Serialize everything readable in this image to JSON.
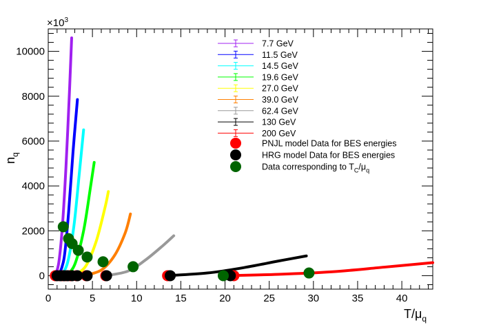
{
  "chart_data": {
    "type": "line",
    "xlabel": "T/μ",
    "xlabel_sub": "q",
    "ylabel": "n",
    "ylabel_sub": "q",
    "y_multiplier": "×10",
    "y_multiplier_exp": "3",
    "xlim": [
      0,
      43.5
    ],
    "ylim": [
      -600,
      11000
    ],
    "x_ticks": [
      0,
      5,
      10,
      15,
      20,
      25,
      30,
      35,
      40
    ],
    "y_ticks": [
      0,
      2000,
      4000,
      6000,
      8000,
      10000
    ],
    "series": [
      {
        "name": "7.7 GeV",
        "color": "#a020f0",
        "x": [
          0.8,
          1.2,
          1.6,
          2.0,
          2.4,
          2.65
        ],
        "y": [
          0,
          600,
          2200,
          4800,
          8200,
          10600
        ]
      },
      {
        "name": "11.5 GeV",
        "color": "#0000ff",
        "x": [
          1.2,
          1.8,
          2.3,
          2.8,
          3.3
        ],
        "y": [
          0,
          800,
          2800,
          5500,
          7850
        ]
      },
      {
        "name": "14.5 GeV",
        "color": "#00ffff",
        "x": [
          1.5,
          2.2,
          2.9,
          3.5,
          4.0
        ],
        "y": [
          0,
          600,
          2200,
          4500,
          6500
        ]
      },
      {
        "name": "19.6 GeV",
        "color": "#00ff00",
        "x": [
          2.0,
          3.0,
          4.0,
          4.8,
          5.2
        ],
        "y": [
          0,
          500,
          2000,
          4000,
          5050
        ]
      },
      {
        "name": "27.0 GeV",
        "color": "#ffff00",
        "x": [
          2.8,
          4.2,
          5.4,
          6.4,
          6.8
        ],
        "y": [
          0,
          400,
          1500,
          3000,
          3750
        ]
      },
      {
        "name": "39.0 GeV",
        "color": "#ff7f00",
        "x": [
          4.0,
          6.0,
          7.5,
          8.7,
          9.3
        ],
        "y": [
          0,
          250,
          900,
          1900,
          2750
        ]
      },
      {
        "name": "62.4 GeV",
        "color": "#999999",
        "x": [
          6.5,
          9.0,
          11.0,
          13.0,
          14.2
        ],
        "y": [
          0,
          200,
          700,
          1350,
          1780
        ]
      },
      {
        "name": "130 GeV",
        "color": "#000000",
        "x": [
          13.5,
          18.0,
          22.0,
          26.0,
          29.2
        ],
        "y": [
          0,
          120,
          350,
          650,
          880
        ]
      },
      {
        "name": "200 GeV",
        "color": "#ff0000",
        "x": [
          20.0,
          26.0,
          32.0,
          38.0,
          43.5
        ],
        "y": [
          0,
          60,
          170,
          380,
          580
        ]
      }
    ],
    "pnjl_points": {
      "name": "PNJL model Data for BES energies",
      "color": "#ff0000",
      "x": [
        0.8,
        1.3,
        1.6,
        2.0,
        2.5,
        3.2,
        4.3,
        6.5,
        13.5,
        21.0
      ],
      "y": [
        0,
        0,
        0,
        0,
        0,
        0,
        0,
        0,
        0,
        0
      ]
    },
    "hrg_points": {
      "name": "HRG model Data for BES energies",
      "color": "#000000",
      "x": [
        1.0,
        1.4,
        1.8,
        2.2,
        2.7,
        3.3,
        4.4,
        6.6,
        13.8,
        20.6
      ],
      "y": [
        0,
        0,
        0,
        0,
        0,
        0,
        0,
        0,
        0,
        0
      ]
    },
    "tc_points": {
      "name": "Data corresponding to T",
      "name_sub": "C",
      "name_suffix": "/μ",
      "name_suffix_sub": "q",
      "color": "#006400",
      "x": [
        1.7,
        2.3,
        2.7,
        3.4,
        4.4,
        6.2,
        9.6,
        19.8,
        29.5
      ],
      "y": [
        2180,
        1650,
        1430,
        1130,
        830,
        620,
        400,
        0,
        120
      ]
    }
  }
}
